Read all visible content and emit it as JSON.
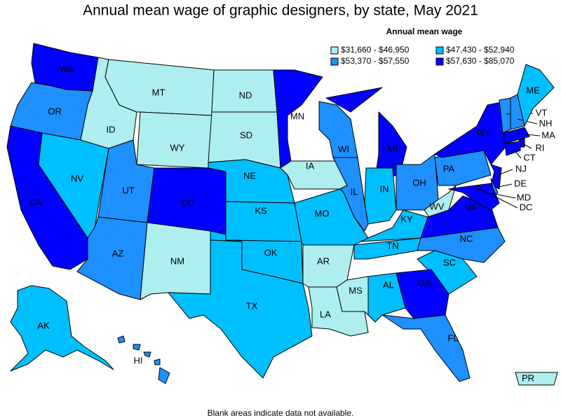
{
  "title": "Annual mean wage of graphic designers, by state, May 2021",
  "legend": {
    "title": "Annual mean wage",
    "items": [
      {
        "label": "$31,660 - $46,950",
        "color": "#aeeeee"
      },
      {
        "label": "$47,430 - $52,940",
        "color": "#00bfff"
      },
      {
        "label": "$53,370 - $57,550",
        "color": "#1e90ff"
      },
      {
        "label": "$57,630 - $85,070",
        "color": "#0000ff"
      }
    ]
  },
  "states": [
    {
      "abbr": "WA",
      "bin": 3
    },
    {
      "abbr": "OR",
      "bin": 2
    },
    {
      "abbr": "CA",
      "bin": 3
    },
    {
      "abbr": "NV",
      "bin": 1
    },
    {
      "abbr": "ID",
      "bin": 0
    },
    {
      "abbr": "MT",
      "bin": 0
    },
    {
      "abbr": "WY",
      "bin": 0
    },
    {
      "abbr": "UT",
      "bin": 2
    },
    {
      "abbr": "CO",
      "bin": 3
    },
    {
      "abbr": "AZ",
      "bin": 2
    },
    {
      "abbr": "NM",
      "bin": 0
    },
    {
      "abbr": "ND",
      "bin": 0
    },
    {
      "abbr": "SD",
      "bin": 0
    },
    {
      "abbr": "NE",
      "bin": 1
    },
    {
      "abbr": "KS",
      "bin": 1
    },
    {
      "abbr": "OK",
      "bin": 1
    },
    {
      "abbr": "TX",
      "bin": 1
    },
    {
      "abbr": "MN",
      "bin": 3
    },
    {
      "abbr": "IA",
      "bin": 0
    },
    {
      "abbr": "MO",
      "bin": 1
    },
    {
      "abbr": "AR",
      "bin": 0
    },
    {
      "abbr": "LA",
      "bin": 0
    },
    {
      "abbr": "MS",
      "bin": 0
    },
    {
      "abbr": "AL",
      "bin": 1
    },
    {
      "abbr": "TN",
      "bin": 1
    },
    {
      "abbr": "KY",
      "bin": 1
    },
    {
      "abbr": "IL",
      "bin": 2
    },
    {
      "abbr": "WI",
      "bin": 2
    },
    {
      "abbr": "MI",
      "bin": 3
    },
    {
      "abbr": "IN",
      "bin": 1
    },
    {
      "abbr": "OH",
      "bin": 2
    },
    {
      "abbr": "WV",
      "bin": 0
    },
    {
      "abbr": "VA",
      "bin": 3
    },
    {
      "abbr": "NC",
      "bin": 2
    },
    {
      "abbr": "SC",
      "bin": 1
    },
    {
      "abbr": "GA",
      "bin": 3
    },
    {
      "abbr": "FL",
      "bin": 2
    },
    {
      "abbr": "PA",
      "bin": 2
    },
    {
      "abbr": "NY",
      "bin": 3
    },
    {
      "abbr": "NJ",
      "bin": 3
    },
    {
      "abbr": "DE",
      "bin": 2
    },
    {
      "abbr": "MD",
      "bin": 3
    },
    {
      "abbr": "DC",
      "bin": 3
    },
    {
      "abbr": "VT",
      "bin": 2
    },
    {
      "abbr": "NH",
      "bin": 2
    },
    {
      "abbr": "ME",
      "bin": 1
    },
    {
      "abbr": "MA",
      "bin": 3
    },
    {
      "abbr": "RI",
      "bin": 3
    },
    {
      "abbr": "CT",
      "bin": 3
    },
    {
      "abbr": "AK",
      "bin": 1
    },
    {
      "abbr": "HI",
      "bin": 2
    },
    {
      "abbr": "PR",
      "bin": 0
    }
  ],
  "footnote": "Blank areas indicate data not available."
}
